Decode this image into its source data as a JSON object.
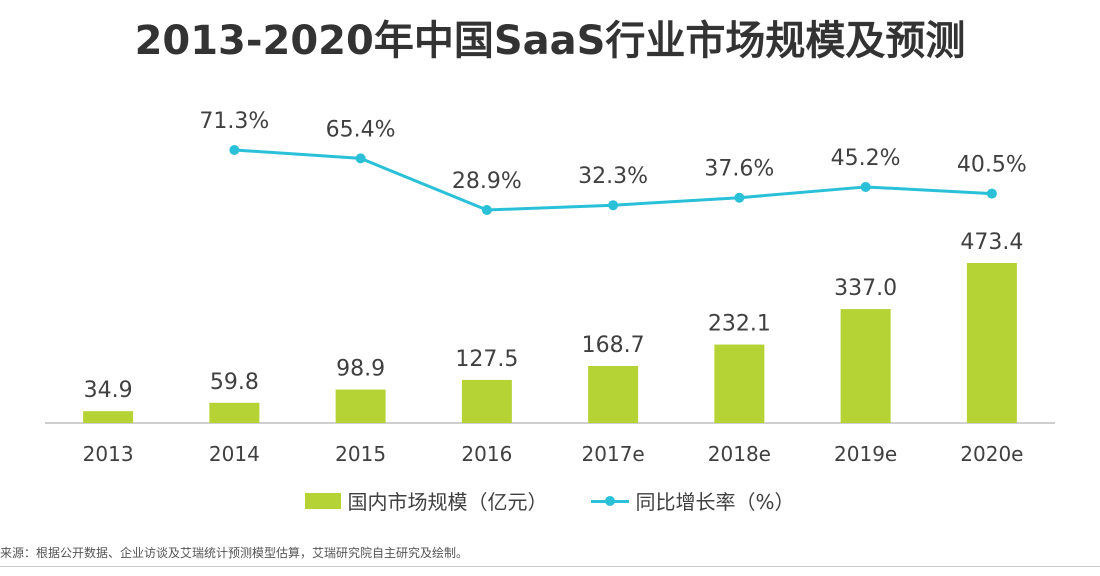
{
  "colors": {
    "bar": "#b5d334",
    "line": "#29c0d8",
    "axis": "#bfbfbf",
    "label": "#404040",
    "title": "#333333"
  },
  "chart_data": {
    "type": "bar",
    "title": "2013-2020年中国SaaS行业市场规模及预测",
    "categories": [
      "2013",
      "2014",
      "2015",
      "2016",
      "2017e",
      "2018e",
      "2019e",
      "2020e"
    ],
    "series": [
      {
        "name": "国内市场规模（亿元）",
        "kind": "bar",
        "values": [
          34.9,
          59.8,
          98.9,
          127.5,
          168.7,
          232.1,
          337.0,
          473.4
        ],
        "labels": [
          "34.9",
          "59.8",
          "98.9",
          "127.5",
          "168.7",
          "232.1",
          "337.0",
          "473.4"
        ]
      },
      {
        "name": "同比增长率（%）",
        "kind": "line",
        "values": [
          null,
          71.3,
          65.4,
          28.9,
          32.3,
          37.6,
          45.2,
          40.5
        ],
        "labels": [
          "",
          "71.3%",
          "65.4%",
          "28.9%",
          "32.3%",
          "37.6%",
          "45.2%",
          "40.5%"
        ]
      }
    ],
    "xlabel": "",
    "ylabel": "",
    "ylim_bar": [
      0,
      500
    ],
    "ylim_line": [
      0,
      80
    ],
    "legend_position": "bottom"
  },
  "source": "来源：根据公开数据、企业访谈及艾瑞统计预测模型估算，艾瑞研究院自主研究及绘制。"
}
